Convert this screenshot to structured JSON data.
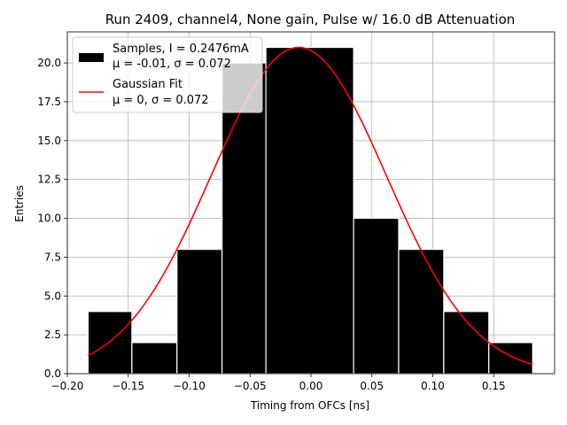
{
  "chart_data": {
    "type": "bar",
    "title": "Run 2409, channel4, None gain, Pulse w/ 16.0 dB Attenuation",
    "xlabel": "Timing from OFCs [ns]",
    "ylabel": "Entries",
    "xlim": [
      -0.2,
      0.2
    ],
    "ylim": [
      0,
      22
    ],
    "grid": true,
    "legend_position": "top-left",
    "x_ticks": [
      "−0.20",
      "−0.15",
      "−0.10",
      "−0.05",
      "0.00",
      "0.05",
      "0.10",
      "0.15"
    ],
    "x_tick_values": [
      -0.2,
      -0.15,
      -0.1,
      -0.05,
      0.0,
      0.05,
      0.1,
      0.15
    ],
    "y_ticks": [
      "0.0",
      "2.5",
      "5.0",
      "7.5",
      "10.0",
      "12.5",
      "15.0",
      "17.5",
      "20.0"
    ],
    "y_tick_values": [
      0,
      2.5,
      5,
      7.5,
      10,
      12.5,
      15,
      17.5,
      20
    ],
    "histogram": {
      "name_line1": "Samples, I = 0.2476mA",
      "name_line2": "μ = -0.01, σ = 0.072",
      "color": "#000000",
      "edge_color": "#ffffff",
      "bins": [
        {
          "x0": -0.183,
          "x1": -0.147,
          "value": 4
        },
        {
          "x0": -0.147,
          "x1": -0.11,
          "value": 2
        },
        {
          "x0": -0.11,
          "x1": -0.073,
          "value": 8
        },
        {
          "x0": -0.073,
          "x1": -0.037,
          "value": 20
        },
        {
          "x0": -0.037,
          "x1": 0.035,
          "value": 21
        },
        {
          "x0": 0.035,
          "x1": 0.072,
          "value": 10
        },
        {
          "x0": 0.072,
          "x1": 0.109,
          "value": 8
        },
        {
          "x0": 0.109,
          "x1": 0.146,
          "value": 4
        },
        {
          "x0": 0.146,
          "x1": 0.182,
          "value": 2
        }
      ]
    },
    "fit": {
      "name_line1": "Gaussian Fit",
      "name_line2": "μ = 0, σ = 0.072",
      "color": "#ff0000",
      "amplitude": 21,
      "mean": -0.01,
      "sigma": 0.072,
      "x_range": [
        -0.183,
        0.182
      ]
    }
  }
}
